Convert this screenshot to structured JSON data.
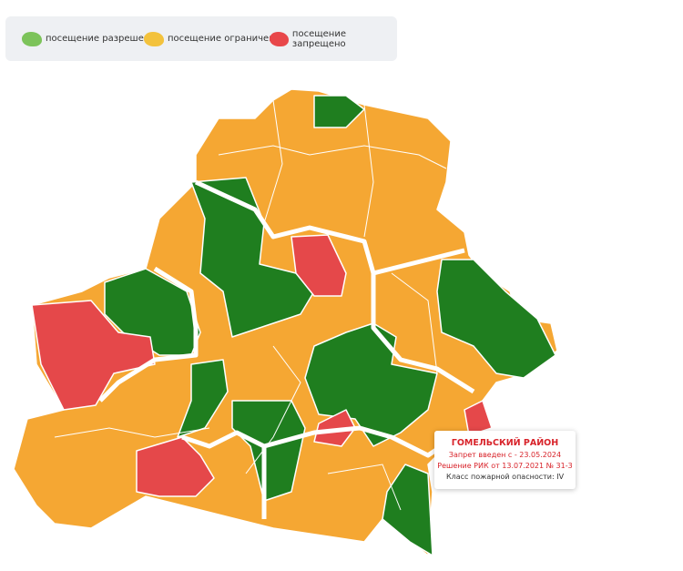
{
  "legend": {
    "items": [
      {
        "label": "посещение разрешено",
        "color": "#7cc35a"
      },
      {
        "label": "посещение ограничено",
        "color": "#f3c23c"
      },
      {
        "label": "посещение запрещено",
        "color": "#e8474a"
      }
    ]
  },
  "tooltip": {
    "title": "ГОМЕЛЬСКИЙ РАЙОН",
    "lines": [
      "Запрет введен с - 23.05.2024",
      "Решение РИК от 13.07.2021 № 31-3",
      "Класс пожарной опасности: IV"
    ]
  }
}
